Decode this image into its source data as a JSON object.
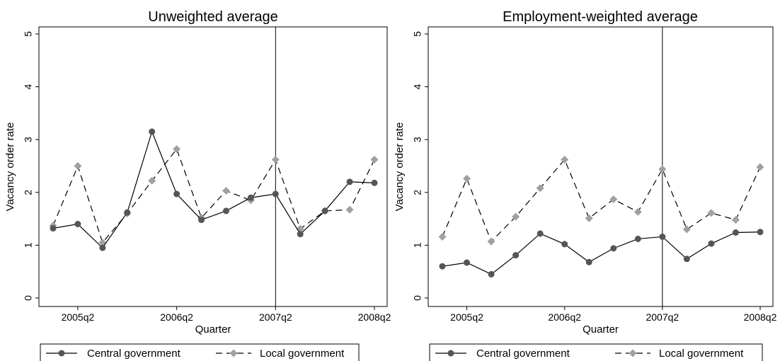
{
  "chart_data": [
    {
      "type": "line",
      "title": "Unweighted average",
      "xlabel": "Quarter",
      "ylabel": "Vacancy order rate",
      "ylim": [
        0,
        5
      ],
      "y_ticks": [
        "0",
        "1",
        "2",
        "3",
        "4",
        "5"
      ],
      "x_tick_labels": [
        "2005q2",
        "2006q2",
        "2007q2",
        "2008q2"
      ],
      "x": [
        "2005q1",
        "2005q2",
        "2005q3",
        "2005q4",
        "2006q1",
        "2006q2",
        "2006q3",
        "2006q4",
        "2007q1",
        "2007q2",
        "2007q3",
        "2007q4",
        "2008q1",
        "2008q2"
      ],
      "vline": "2007q2",
      "grid": false,
      "legend_position": "bottom",
      "series": [
        {
          "name": "Central government",
          "style": "solid",
          "marker": "circle",
          "color": "#555555",
          "values": [
            1.32,
            1.4,
            0.95,
            1.62,
            3.15,
            1.97,
            1.48,
            1.65,
            1.9,
            1.97,
            1.21,
            1.65,
            2.2,
            2.18
          ]
        },
        {
          "name": "Local government",
          "style": "dashed",
          "marker": "diamond",
          "color": "#a0a0a0",
          "values": [
            1.37,
            2.5,
            1.05,
            1.6,
            2.22,
            2.82,
            1.52,
            2.03,
            1.85,
            2.62,
            1.31,
            1.65,
            1.67,
            2.62
          ]
        }
      ]
    },
    {
      "type": "line",
      "title": "Employment-weighted average",
      "xlabel": "Quarter",
      "ylabel": "Vacancy order rate",
      "ylim": [
        0,
        5
      ],
      "y_ticks": [
        "0",
        "1",
        "2",
        "3",
        "4",
        "5"
      ],
      "x_tick_labels": [
        "2005q2",
        "2006q2",
        "2007q2",
        "2008q2"
      ],
      "x": [
        "2005q1",
        "2005q2",
        "2005q3",
        "2005q4",
        "2006q1",
        "2006q2",
        "2006q3",
        "2006q4",
        "2007q1",
        "2007q2",
        "2007q3",
        "2007q4",
        "2008q1",
        "2008q2"
      ],
      "vline": "2007q2",
      "grid": false,
      "legend_position": "bottom",
      "series": [
        {
          "name": "Central government",
          "style": "solid",
          "marker": "circle",
          "color": "#555555",
          "values": [
            0.6,
            0.67,
            0.45,
            0.81,
            1.22,
            1.02,
            0.68,
            0.94,
            1.12,
            1.16,
            0.74,
            1.03,
            1.24,
            1.25
          ]
        },
        {
          "name": "Local government",
          "style": "dashed",
          "marker": "diamond",
          "color": "#a0a0a0",
          "values": [
            1.16,
            2.26,
            1.07,
            1.54,
            2.08,
            2.62,
            1.51,
            1.87,
            1.63,
            2.44,
            1.3,
            1.61,
            1.48,
            2.48
          ]
        }
      ]
    }
  ]
}
